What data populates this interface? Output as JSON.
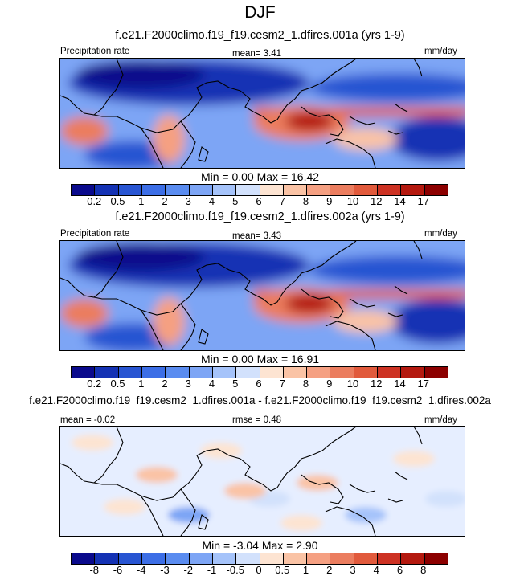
{
  "title": "DJF",
  "palettes": {
    "precip": [
      "#0a0a8c",
      "#1432b4",
      "#2855d2",
      "#3c6ee6",
      "#5a8cf0",
      "#7da5f5",
      "#a5c3fa",
      "#d2e1fc",
      "#fde4d2",
      "#fac3a5",
      "#f5a082",
      "#eb7d5f",
      "#e15a3c",
      "#cd3223",
      "#b4190f",
      "#8c0000"
    ],
    "diff": [
      "#0a0a8c",
      "#1432b4",
      "#2855d2",
      "#3c6ee6",
      "#5a8cf0",
      "#7da5f5",
      "#a5c3fa",
      "#d2e1fc",
      "#fde4d2",
      "#fac3a5",
      "#f5a082",
      "#eb7d5f",
      "#e15a3c",
      "#cd3223",
      "#b4190f",
      "#8c0000"
    ]
  },
  "panels": [
    {
      "title": "f.e21.F2000climo.f19_f19.cesm2_1.dfires.001a (yrs 1-9)",
      "left_label": "Precipitation rate",
      "center_label": "mean=  3.41",
      "right_label": "mm/day",
      "minmax": "Min =   0.00 Max =  16.42",
      "variant": "precip",
      "ticks": [
        "0.2",
        "0.5",
        "1",
        "2",
        "3",
        "4",
        "5",
        "6",
        "7",
        "8",
        "9",
        "10",
        "12",
        "14",
        "17"
      ]
    },
    {
      "title": "f.e21.F2000climo.f19_f19.cesm2_1.dfires.002a (yrs 1-9)",
      "left_label": "Precipitation rate",
      "center_label": "mean=  3.43",
      "right_label": "mm/day",
      "minmax": "Min =   0.00 Max =  16.91",
      "variant": "precip",
      "ticks": [
        "0.2",
        "0.5",
        "1",
        "2",
        "3",
        "4",
        "5",
        "6",
        "7",
        "8",
        "9",
        "10",
        "12",
        "14",
        "17"
      ]
    },
    {
      "title": "f.e21.F2000climo.f19_f19.cesm2_1.dfires.001a - f.e21.F2000climo.f19_f19.cesm2_1.dfires.002a",
      "left_label": "mean =  -0.02",
      "center_label": "rmse =  0.48",
      "right_label": "mm/day",
      "minmax": "Min =  -3.04 Max =   2.90",
      "variant": "diff",
      "ticks": [
        "-8",
        "-6",
        "-4",
        "-3",
        "-2",
        "-1",
        "-0.5",
        "0",
        "0.5",
        "1",
        "2",
        "3",
        "4",
        "6",
        "8"
      ]
    }
  ],
  "chart_data": [
    {
      "type": "heatmap",
      "title": "f.e21.F2000climo.f19_f19.cesm2_1.dfires.001a (yrs 1-9)",
      "variable": "Precipitation rate",
      "units": "mm/day",
      "mean": 3.41,
      "min": 0.0,
      "max": 16.42,
      "levels": [
        0.2,
        0.5,
        1,
        2,
        3,
        4,
        5,
        6,
        7,
        8,
        9,
        10,
        12,
        14,
        17
      ]
    },
    {
      "type": "heatmap",
      "title": "f.e21.F2000climo.f19_f19.cesm2_1.dfires.002a (yrs 1-9)",
      "variable": "Precipitation rate",
      "units": "mm/day",
      "mean": 3.43,
      "min": 0.0,
      "max": 16.91,
      "levels": [
        0.2,
        0.5,
        1,
        2,
        3,
        4,
        5,
        6,
        7,
        8,
        9,
        10,
        12,
        14,
        17
      ]
    },
    {
      "type": "heatmap",
      "title": "f.e21.F2000climo.f19_f19.cesm2_1.dfires.001a - f.e21.F2000climo.f19_f19.cesm2_1.dfires.002a",
      "units": "mm/day",
      "mean": -0.02,
      "rmse": 0.48,
      "min": -3.04,
      "max": 2.9,
      "levels": [
        -8,
        -6,
        -4,
        -3,
        -2,
        -1,
        -0.5,
        0,
        0.5,
        1,
        2,
        3,
        4,
        6,
        8
      ]
    }
  ]
}
